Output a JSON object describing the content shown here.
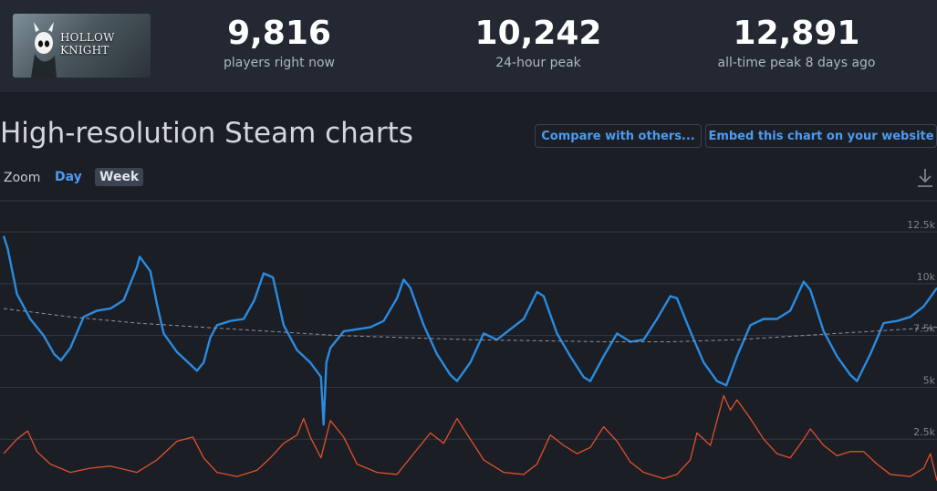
{
  "game": {
    "capsule_logo_text": "HOLLOW KNIGHT"
  },
  "stats": [
    {
      "value": "9,816",
      "label": "players right now"
    },
    {
      "value": "10,242",
      "label": "24-hour peak"
    },
    {
      "value": "12,891",
      "label": "all-time peak 8 days ago"
    }
  ],
  "chart_section": {
    "title": "High-resolution Steam charts",
    "compare_label": "Compare with others...",
    "embed_label": "Embed this chart on your website",
    "zoom_label": "Zoom",
    "zoom_options": [
      "Day",
      "Week"
    ],
    "zoom_active": "Week",
    "download_icon": "download-icon"
  },
  "colors": {
    "players_line": "#2a8be0",
    "secondary_line": "#e0502c",
    "trend_line": "#8f949c",
    "link_blue": "#4c9bf0",
    "background": "#1b1e25",
    "header_bar": "#232833"
  },
  "chart_data": {
    "type": "line",
    "title": "",
    "xlabel": "",
    "ylabel": "",
    "ylim": [
      0,
      14000
    ],
    "y_ticks": [
      {
        "value": 2500,
        "label": "2.5k"
      },
      {
        "value": 5000,
        "label": "5k"
      },
      {
        "value": 7500,
        "label": "7.5k"
      },
      {
        "value": 10000,
        "label": "10k"
      },
      {
        "value": 12500,
        "label": "12.5k"
      }
    ],
    "x_range": [
      0,
      7
    ],
    "series": [
      {
        "key": "players",
        "color": "#2a8be0",
        "points": [
          [
            0,
            12300
          ],
          [
            0.03,
            11700
          ],
          [
            0.1,
            9500
          ],
          [
            0.2,
            8300
          ],
          [
            0.3,
            7500
          ],
          [
            0.38,
            6600
          ],
          [
            0.43,
            6300
          ],
          [
            0.5,
            6900
          ],
          [
            0.6,
            8400
          ],
          [
            0.7,
            8700
          ],
          [
            0.8,
            8800
          ],
          [
            0.9,
            9200
          ],
          [
            1.0,
            10800
          ],
          [
            1.02,
            11300
          ],
          [
            1.1,
            10600
          ],
          [
            1.15,
            9000
          ],
          [
            1.2,
            7600
          ],
          [
            1.3,
            6700
          ],
          [
            1.4,
            6100
          ],
          [
            1.45,
            5800
          ],
          [
            1.5,
            6200
          ],
          [
            1.55,
            7400
          ],
          [
            1.6,
            8000
          ],
          [
            1.7,
            8200
          ],
          [
            1.8,
            8300
          ],
          [
            1.88,
            9200
          ],
          [
            1.95,
            10500
          ],
          [
            2.02,
            10300
          ],
          [
            2.1,
            8000
          ],
          [
            2.2,
            6800
          ],
          [
            2.3,
            6200
          ],
          [
            2.38,
            5500
          ],
          [
            2.4,
            3200
          ],
          [
            2.42,
            6200
          ],
          [
            2.45,
            6900
          ],
          [
            2.55,
            7700
          ],
          [
            2.65,
            7800
          ],
          [
            2.75,
            7900
          ],
          [
            2.85,
            8200
          ],
          [
            2.95,
            9300
          ],
          [
            3.0,
            10200
          ],
          [
            3.05,
            9800
          ],
          [
            3.15,
            8000
          ],
          [
            3.25,
            6600
          ],
          [
            3.35,
            5600
          ],
          [
            3.4,
            5300
          ],
          [
            3.5,
            6200
          ],
          [
            3.6,
            7600
          ],
          [
            3.7,
            7300
          ],
          [
            3.8,
            7800
          ],
          [
            3.9,
            8300
          ],
          [
            4.0,
            9600
          ],
          [
            4.05,
            9400
          ],
          [
            4.15,
            7600
          ],
          [
            4.25,
            6500
          ],
          [
            4.35,
            5500
          ],
          [
            4.4,
            5300
          ],
          [
            4.5,
            6500
          ],
          [
            4.6,
            7600
          ],
          [
            4.7,
            7200
          ],
          [
            4.8,
            7300
          ],
          [
            4.9,
            8300
          ],
          [
            5.0,
            9400
          ],
          [
            5.05,
            9300
          ],
          [
            5.15,
            7700
          ],
          [
            5.25,
            6200
          ],
          [
            5.35,
            5300
          ],
          [
            5.42,
            5100
          ],
          [
            5.5,
            6500
          ],
          [
            5.6,
            8000
          ],
          [
            5.7,
            8300
          ],
          [
            5.8,
            8300
          ],
          [
            5.9,
            8700
          ],
          [
            6.0,
            10100
          ],
          [
            6.05,
            9700
          ],
          [
            6.15,
            7700
          ],
          [
            6.25,
            6500
          ],
          [
            6.35,
            5600
          ],
          [
            6.4,
            5300
          ],
          [
            6.5,
            6600
          ],
          [
            6.6,
            8100
          ],
          [
            6.7,
            8200
          ],
          [
            6.8,
            8400
          ],
          [
            6.9,
            8900
          ],
          [
            7.0,
            9800
          ]
        ]
      },
      {
        "key": "secondary",
        "color": "#e0502c",
        "points": [
          [
            0,
            1800
          ],
          [
            0.1,
            2500
          ],
          [
            0.18,
            2900
          ],
          [
            0.25,
            1900
          ],
          [
            0.35,
            1300
          ],
          [
            0.5,
            900
          ],
          [
            0.65,
            1100
          ],
          [
            0.8,
            1200
          ],
          [
            1.0,
            900
          ],
          [
            1.15,
            1500
          ],
          [
            1.3,
            2400
          ],
          [
            1.42,
            2600
          ],
          [
            1.5,
            1600
          ],
          [
            1.6,
            900
          ],
          [
            1.75,
            700
          ],
          [
            1.9,
            1000
          ],
          [
            2.0,
            1600
          ],
          [
            2.1,
            2300
          ],
          [
            2.2,
            2700
          ],
          [
            2.25,
            3500
          ],
          [
            2.3,
            2600
          ],
          [
            2.38,
            1600
          ],
          [
            2.45,
            3400
          ],
          [
            2.55,
            2600
          ],
          [
            2.65,
            1300
          ],
          [
            2.8,
            900
          ],
          [
            2.95,
            800
          ],
          [
            3.1,
            2000
          ],
          [
            3.2,
            2800
          ],
          [
            3.3,
            2300
          ],
          [
            3.4,
            3500
          ],
          [
            3.5,
            2500
          ],
          [
            3.6,
            1500
          ],
          [
            3.75,
            900
          ],
          [
            3.9,
            800
          ],
          [
            4.0,
            1300
          ],
          [
            4.1,
            2700
          ],
          [
            4.2,
            2200
          ],
          [
            4.3,
            1800
          ],
          [
            4.4,
            2100
          ],
          [
            4.5,
            3100
          ],
          [
            4.6,
            2400
          ],
          [
            4.7,
            1400
          ],
          [
            4.8,
            900
          ],
          [
            4.95,
            600
          ],
          [
            5.05,
            800
          ],
          [
            5.15,
            1500
          ],
          [
            5.2,
            2800
          ],
          [
            5.3,
            2200
          ],
          [
            5.4,
            4600
          ],
          [
            5.45,
            3900
          ],
          [
            5.5,
            4400
          ],
          [
            5.6,
            3500
          ],
          [
            5.7,
            2500
          ],
          [
            5.8,
            1800
          ],
          [
            5.9,
            1600
          ],
          [
            6.0,
            2500
          ],
          [
            6.05,
            3000
          ],
          [
            6.15,
            2200
          ],
          [
            6.25,
            1700
          ],
          [
            6.35,
            1900
          ],
          [
            6.45,
            1900
          ],
          [
            6.55,
            1300
          ],
          [
            6.65,
            800
          ],
          [
            6.8,
            700
          ],
          [
            6.9,
            1100
          ],
          [
            6.95,
            1800
          ],
          [
            7.0,
            500
          ]
        ]
      },
      {
        "key": "trend",
        "color": "#8f949c",
        "dashed": true,
        "points": [
          [
            0,
            8800
          ],
          [
            0.5,
            8400
          ],
          [
            1.0,
            8100
          ],
          [
            1.5,
            7900
          ],
          [
            2.0,
            7700
          ],
          [
            2.5,
            7500
          ],
          [
            3.0,
            7400
          ],
          [
            3.5,
            7300
          ],
          [
            4.0,
            7250
          ],
          [
            4.5,
            7200
          ],
          [
            5.0,
            7200
          ],
          [
            5.5,
            7300
          ],
          [
            6.0,
            7500
          ],
          [
            6.5,
            7700
          ],
          [
            7.0,
            7900
          ]
        ]
      }
    ]
  }
}
